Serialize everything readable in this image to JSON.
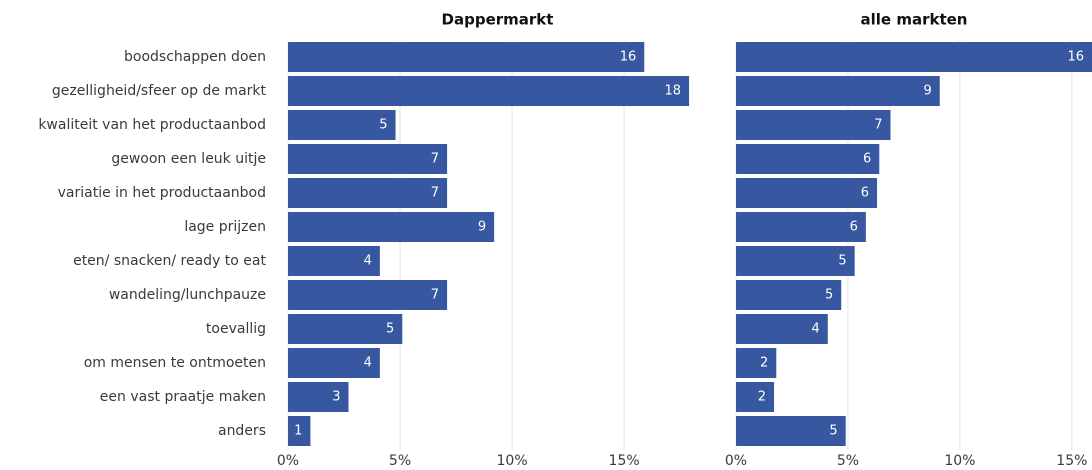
{
  "chart_data": [
    {
      "type": "bar",
      "orientation": "horizontal",
      "title": "Dappermarkt",
      "color": "#3757a1",
      "grid": true,
      "categories": [
        "boodschappen doen",
        "gezelligheid/sfeer op de markt",
        "kwaliteit van het productaanbod",
        "gewoon een leuk uitje",
        "variatie in het productaanbod",
        "lage prijzen",
        "eten/ snacken/ ready to eat",
        "wandeling/lunchpauze",
        "toevallig",
        "om mensen te ontmoeten",
        "een vast praatje maken",
        "anders"
      ],
      "values": [
        15.9,
        17.9,
        4.8,
        7.1,
        7.1,
        9.2,
        4.1,
        7.1,
        5.1,
        4.1,
        2.7,
        1.0
      ],
      "value_labels": [
        "16",
        "18",
        "5",
        "7",
        "7",
        "9",
        "4",
        "7",
        "5",
        "4",
        "3",
        "1"
      ],
      "xlim": [
        0,
        18.7
      ],
      "xticks": [
        {
          "value": 0,
          "label": "0%"
        },
        {
          "value": 5,
          "label": "5%"
        },
        {
          "value": 10,
          "label": "10%"
        },
        {
          "value": 15,
          "label": "15%"
        }
      ]
    },
    {
      "type": "bar",
      "orientation": "horizontal",
      "title": "alle markten",
      "color": "#3757a1",
      "grid": true,
      "values": [
        15.9,
        9.1,
        6.9,
        6.4,
        6.3,
        5.8,
        5.3,
        4.7,
        4.1,
        1.8,
        1.7,
        4.9
      ],
      "value_labels": [
        "16",
        "9",
        "7",
        "6",
        "6",
        "6",
        "5",
        "5",
        "4",
        "2",
        "2",
        "5"
      ],
      "xlim": [
        0,
        15.9
      ],
      "xticks": [
        {
          "value": 0,
          "label": "0%"
        },
        {
          "value": 5,
          "label": "5%"
        },
        {
          "value": 10,
          "label": "10%"
        },
        {
          "value": 15,
          "label": "15%"
        }
      ]
    }
  ]
}
